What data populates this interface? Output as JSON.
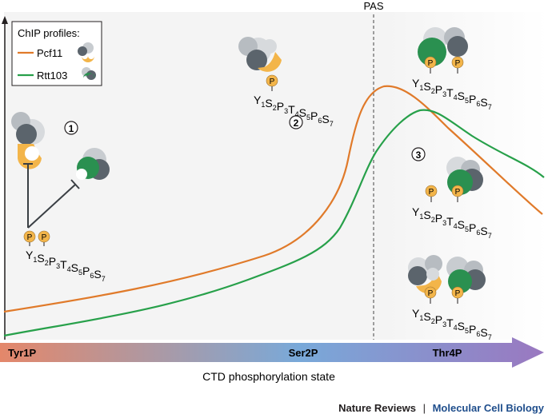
{
  "legend": {
    "title": "ChIP profiles:",
    "items": [
      {
        "label": "Pcf11",
        "color": "#e07a2a"
      },
      {
        "label": "Rtt103",
        "color": "#27a04a"
      }
    ]
  },
  "marker": {
    "label": "PAS"
  },
  "steps": [
    "1",
    "2",
    "3"
  ],
  "phospho_label": "P",
  "ctd_residues": [
    {
      "letter": "Y",
      "index": "1"
    },
    {
      "letter": "S",
      "index": "2"
    },
    {
      "letter": "P",
      "index": "3"
    },
    {
      "letter": "T",
      "index": "4"
    },
    {
      "letter": "S",
      "index": "5"
    },
    {
      "letter": "P",
      "index": "6"
    },
    {
      "letter": "S",
      "index": "7"
    }
  ],
  "arrow": {
    "labels": [
      "Tyr1P",
      "Ser2P",
      "Thr4P"
    ],
    "caption": "CTD phosphorylation state"
  },
  "footer": {
    "journal": "Nature Reviews",
    "separator": "|",
    "section": "Molecular Cell Biology"
  },
  "colors": {
    "pcf11": "#e07a2a",
    "rtt103": "#27a04a",
    "phospho": "#f3b54a",
    "arrow_start": "#e4876a",
    "arrow_mid": "#79a9d9",
    "arrow_end": "#9a78c0",
    "journal_blue": "#1f4e8c"
  }
}
